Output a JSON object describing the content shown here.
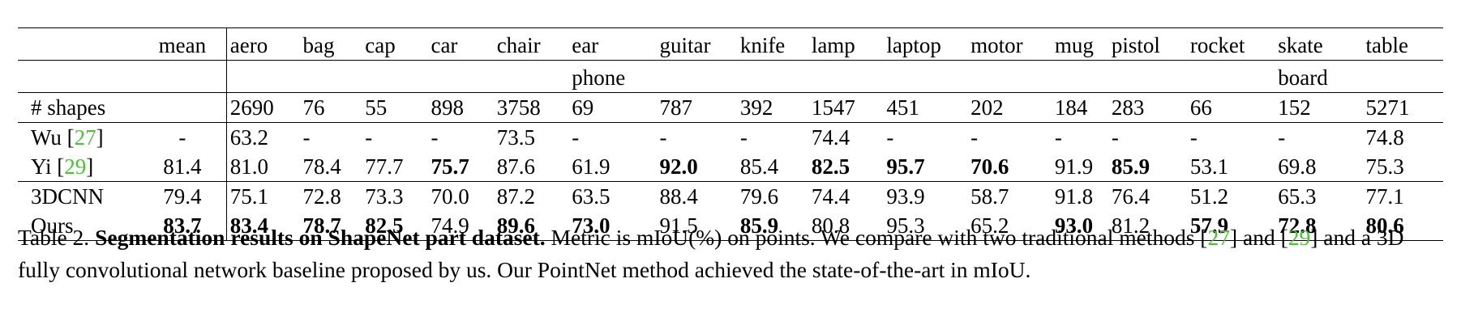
{
  "table": {
    "columns": [
      "mean",
      "aero",
      "bag",
      "cap",
      "car",
      "chair",
      "ear phone",
      "guitar",
      "knife",
      "lamp",
      "laptop",
      "motor",
      "mug",
      "pistol",
      "rocket",
      "skate board",
      "table"
    ],
    "header_lines": [
      [
        "mean",
        "aero",
        "bag",
        "cap",
        "car",
        "chair",
        "ear",
        "guitar",
        "knife",
        "lamp",
        "laptop",
        "motor",
        "mug",
        "pistol",
        "rocket",
        "skate",
        "table"
      ],
      [
        "",
        "",
        "",
        "",
        "",
        "",
        "phone",
        "",
        "",
        "",
        "",
        "",
        "",
        "",
        "",
        "board",
        ""
      ]
    ],
    "rows": [
      {
        "method": "# shapes",
        "cite": "",
        "cells": [
          "",
          "2690",
          "76",
          "55",
          "898",
          "3758",
          "69",
          "787",
          "392",
          "1547",
          "451",
          "202",
          "184",
          "283",
          "66",
          "152",
          "5271"
        ],
        "bold": []
      },
      {
        "method": "Wu [",
        "cite": "27",
        "close": "]",
        "cells": [
          "-",
          "63.2",
          "-",
          "-",
          "-",
          "73.5",
          "-",
          "-",
          "-",
          "74.4",
          "-",
          "-",
          "-",
          "-",
          "-",
          "-",
          "74.8"
        ],
        "bold": []
      },
      {
        "method": "Yi [",
        "cite": "29",
        "close": "]",
        "cells": [
          "81.4",
          "81.0",
          "78.4",
          "77.7",
          "75.7",
          "87.6",
          "61.9",
          "92.0",
          "85.4",
          "82.5",
          "95.7",
          "70.6",
          "91.9",
          "85.9",
          "53.1",
          "69.8",
          "75.3"
        ],
        "bold": [
          4,
          7,
          9,
          10,
          11,
          13
        ]
      },
      {
        "method": "3DCNN",
        "cite": "",
        "cells": [
          "79.4",
          "75.1",
          "72.8",
          "73.3",
          "70.0",
          "87.2",
          "63.5",
          "88.4",
          "79.6",
          "74.4",
          "93.9",
          "58.7",
          "91.8",
          "76.4",
          "51.2",
          "65.3",
          "77.1"
        ],
        "bold": []
      },
      {
        "method": "Ours",
        "cite": "",
        "cells": [
          "83.7",
          "83.4",
          "78.7",
          "82.5",
          "74.9",
          "89.6",
          "73.0",
          "91.5",
          "85.9",
          "80.8",
          "95.3",
          "65.2",
          "93.0",
          "81.2",
          "57.9",
          "72.8",
          "80.6"
        ],
        "bold": [
          0,
          1,
          2,
          3,
          5,
          6,
          8,
          12,
          14,
          15,
          16
        ]
      }
    ]
  },
  "caption": {
    "label": "Table 2.",
    "title": "Segmentation results on ShapeNet part dataset.",
    "text1": " Metric is mIoU(%) on points. We compare with two traditional methods [",
    "cite1": "27",
    "text2": "] and [",
    "cite2": "29",
    "text3": "] and a 3D fully convolutional network baseline proposed by us. Our PointNet method achieved the state-of-the-art in mIoU."
  },
  "colors": {
    "citation": "#4fbf3a",
    "text": "#000000"
  }
}
